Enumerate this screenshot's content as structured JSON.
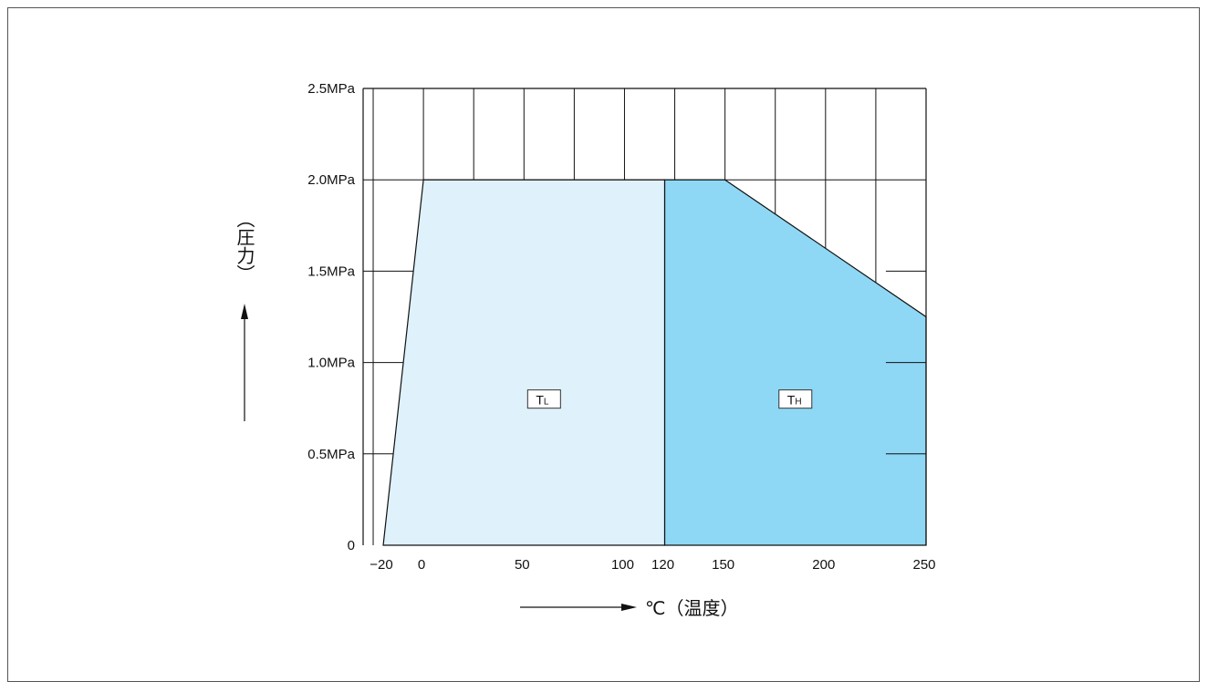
{
  "chart_data": {
    "type": "area",
    "title": "",
    "xlabel": "℃（温度）",
    "ylabel": "（圧力）",
    "xlim": [
      -30,
      250
    ],
    "ylim": [
      0,
      2.5
    ],
    "x_ticks": [
      {
        "value": -20,
        "label": "−20"
      },
      {
        "value": 0,
        "label": "0"
      },
      {
        "value": 50,
        "label": "50"
      },
      {
        "value": 100,
        "label": "100"
      },
      {
        "value": 120,
        "label": "120"
      },
      {
        "value": 150,
        "label": "150"
      },
      {
        "value": 200,
        "label": "200"
      },
      {
        "value": 250,
        "label": "250"
      }
    ],
    "y_ticks": [
      {
        "value": 0,
        "label": "0"
      },
      {
        "value": 0.5,
        "label": "0.5MPa"
      },
      {
        "value": 1.0,
        "label": "1.0MPa"
      },
      {
        "value": 1.5,
        "label": "1.5MPa"
      },
      {
        "value": 2.0,
        "label": "2.0MPa"
      },
      {
        "value": 2.5,
        "label": "2.5MPa"
      }
    ],
    "x_gridlines": [
      -25,
      0,
      25,
      50,
      75,
      100,
      125,
      150,
      175,
      200,
      225,
      250
    ],
    "y_gridlines": [
      0.5,
      1.0,
      1.5,
      2.0,
      2.5
    ],
    "grid": true,
    "regions": [
      {
        "name": "TL",
        "label_main": "T",
        "label_sub": "L",
        "color": "#dff1fb",
        "label_at": [
          60,
          0.8
        ],
        "polygon": [
          [
            -20,
            0
          ],
          [
            0,
            2.0
          ],
          [
            120,
            2.0
          ],
          [
            120,
            0
          ]
        ]
      },
      {
        "name": "TH",
        "label_main": "T",
        "label_sub": "H",
        "color": "#8ed8f5",
        "label_at": [
          185,
          0.8
        ],
        "polygon": [
          [
            120,
            0
          ],
          [
            120,
            2.0
          ],
          [
            150,
            2.0
          ],
          [
            250,
            1.25
          ],
          [
            250,
            0
          ]
        ]
      }
    ]
  }
}
